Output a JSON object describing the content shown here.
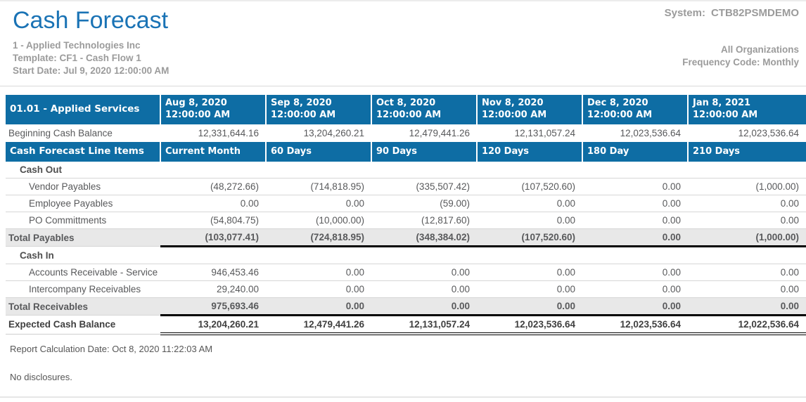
{
  "header": {
    "title": "Cash Forecast",
    "system_label": "System:",
    "system_value": "CTB82PSMDEMO",
    "company": "1 - Applied Technologies Inc",
    "template": "Template: CF1 - Cash Flow 1",
    "start_date": "Start Date: Jul 9, 2020 12:00:00 AM",
    "organizations": "All Organizations",
    "frequency": "Frequency Code: Monthly"
  },
  "colors": {
    "header_blue": "#0e6da4",
    "title_blue": "#1a73b5",
    "muted_gray": "#9b9b9b",
    "body_text_gray": "#58595b",
    "total_row_bg": "#e8e8e8"
  },
  "table": {
    "entity_header": "01.01 - Applied Services",
    "period_headers": [
      {
        "date": "Aug 8, 2020",
        "time": "12:00:00 AM"
      },
      {
        "date": "Sep 8, 2020",
        "time": "12:00:00 AM"
      },
      {
        "date": "Oct 8, 2020",
        "time": "12:00:00 AM"
      },
      {
        "date": "Nov 8, 2020",
        "time": "12:00:00 AM"
      },
      {
        "date": "Dec 8, 2020",
        "time": "12:00:00 AM"
      },
      {
        "date": "Jan 8, 2021",
        "time": "12:00:00 AM"
      }
    ],
    "beginning_balance": {
      "label": "Beginning Cash Balance",
      "values": [
        "12,331,644.16",
        "13,204,260.21",
        "12,479,441.26",
        "12,131,057.24",
        "12,023,536.64",
        "12,023,536.64"
      ]
    },
    "line_items_header": {
      "label": "Cash Forecast Line Items",
      "columns": [
        "Current Month",
        "60 Days",
        "90 Days",
        "120 Days",
        "180 Day",
        "210 Days"
      ]
    },
    "rows": [
      {
        "type": "section",
        "label": "Cash Out",
        "values": [
          "",
          "",
          "",
          "",
          "",
          ""
        ]
      },
      {
        "type": "item",
        "label": "Vendor Payables",
        "values": [
          "(48,272.66)",
          "(714,818.95)",
          "(335,507.42)",
          "(107,520.60)",
          "0.00",
          "(1,000.00)"
        ]
      },
      {
        "type": "item",
        "label": "Employee Payables",
        "values": [
          "0.00",
          "0.00",
          "(59.00)",
          "0.00",
          "0.00",
          "0.00"
        ]
      },
      {
        "type": "item",
        "label": "PO Committments",
        "values": [
          "(54,804.75)",
          "(10,000.00)",
          "(12,817.60)",
          "0.00",
          "0.00",
          "0.00"
        ]
      },
      {
        "type": "total",
        "label": "Total Payables",
        "values": [
          "(103,077.41)",
          "(724,818.95)",
          "(348,384.02)",
          "(107,520.60)",
          "0.00",
          "(1,000.00)"
        ]
      },
      {
        "type": "section",
        "label": "Cash In",
        "values": [
          "",
          "",
          "",
          "",
          "",
          ""
        ]
      },
      {
        "type": "item",
        "label": "Accounts Receivable - Service",
        "values": [
          "946,453.46",
          "0.00",
          "0.00",
          "0.00",
          "0.00",
          "0.00"
        ]
      },
      {
        "type": "item",
        "label": "Intercompany Receivables",
        "values": [
          "29,240.00",
          "0.00",
          "0.00",
          "0.00",
          "0.00",
          "0.00"
        ]
      },
      {
        "type": "total",
        "label": "Total Receivables",
        "values": [
          "975,693.46",
          "0.00",
          "0.00",
          "0.00",
          "0.00",
          "0.00"
        ]
      },
      {
        "type": "grand",
        "label": "Expected Cash Balance",
        "values": [
          "13,204,260.21",
          "12,479,441.26",
          "12,131,057.24",
          "12,023,536.64",
          "12,023,536.64",
          "12,022,536.64"
        ]
      }
    ]
  },
  "footer": {
    "calc_date": "Report Calculation Date: Oct 8, 2020 11:22:03 AM",
    "disclosures": "No disclosures."
  }
}
